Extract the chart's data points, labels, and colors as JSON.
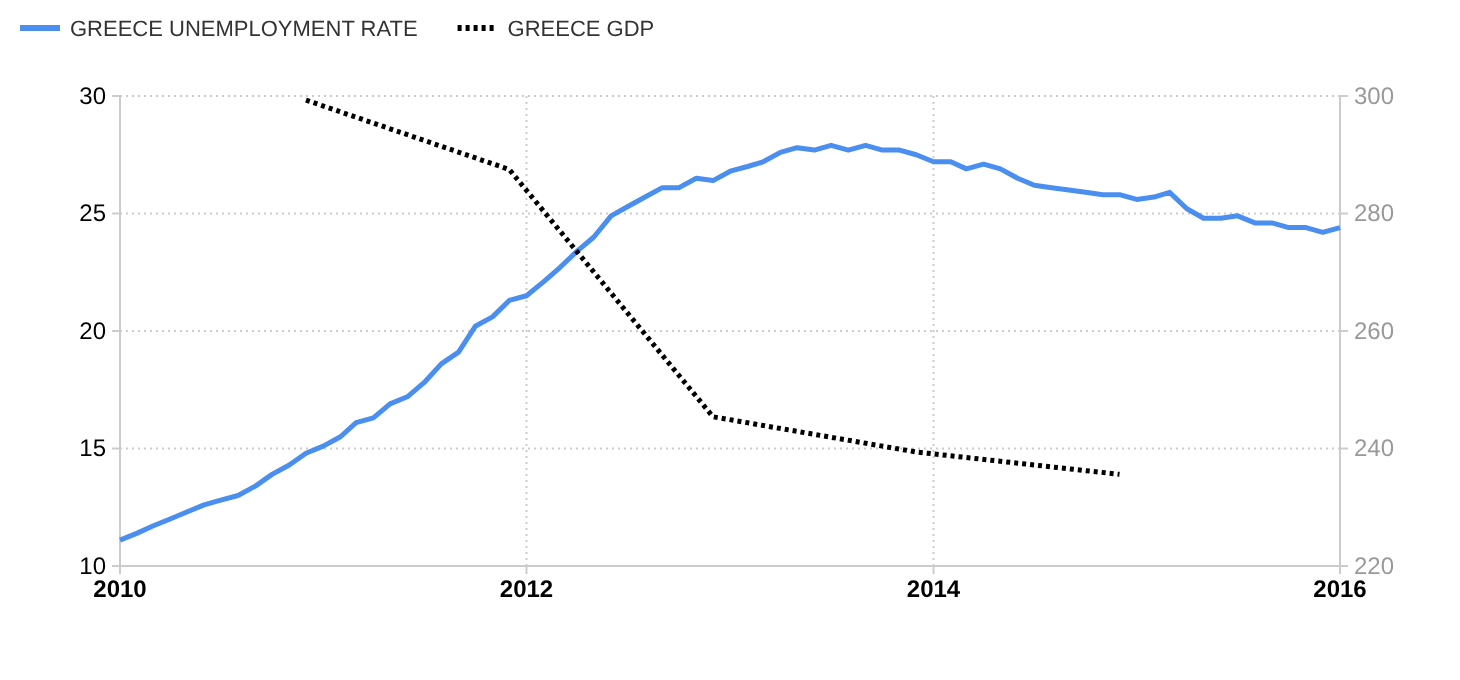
{
  "chart_data": {
    "type": "line",
    "legend": "top left",
    "grid": true,
    "xlim": [
      "2010-01",
      "2016-01"
    ],
    "xticks": [
      {
        "value": "2010-01",
        "label": "2010"
      },
      {
        "value": "2012-01",
        "label": "2012"
      },
      {
        "value": "2014-01",
        "label": "2014"
      },
      {
        "value": "2016-01",
        "label": "2016"
      }
    ],
    "ylim": [
      10,
      30
    ],
    "yticks": [
      10,
      15,
      20,
      25,
      30
    ],
    "y2lim": [
      220,
      300
    ],
    "y2ticks": [
      220,
      240,
      260,
      280,
      300
    ],
    "series": [
      {
        "name": "GREECE UNEMPLOYMENT RATE",
        "color": "#4a8ef0",
        "line_style": "solid",
        "x": [
          "2010-01",
          "2010-02",
          "2010-03",
          "2010-04",
          "2010-05",
          "2010-06",
          "2010-07",
          "2010-08",
          "2010-09",
          "2010-10",
          "2010-11",
          "2010-12",
          "2011-01",
          "2011-02",
          "2011-03",
          "2011-04",
          "2011-05",
          "2011-06",
          "2011-07",
          "2011-08",
          "2011-09",
          "2011-10",
          "2011-11",
          "2011-12",
          "2012-01",
          "2012-02",
          "2012-03",
          "2012-04",
          "2012-05",
          "2012-06",
          "2012-07",
          "2012-08",
          "2012-09",
          "2012-10",
          "2012-11",
          "2012-12",
          "2013-01",
          "2013-02",
          "2013-03",
          "2013-04",
          "2013-05",
          "2013-06",
          "2013-07",
          "2013-08",
          "2013-09",
          "2013-10",
          "2013-11",
          "2013-12",
          "2014-01",
          "2014-02",
          "2014-03",
          "2014-04",
          "2014-05",
          "2014-06",
          "2014-07",
          "2014-08",
          "2014-09",
          "2014-10",
          "2014-11",
          "2014-12",
          "2015-01",
          "2015-02",
          "2015-03",
          "2015-04",
          "2015-05",
          "2015-06",
          "2015-07",
          "2015-08",
          "2015-09",
          "2015-10",
          "2015-11",
          "2015-12",
          "2016-01"
        ],
        "values": [
          11.1,
          11.4,
          11.7,
          12.0,
          12.3,
          12.6,
          12.8,
          13.0,
          13.4,
          13.9,
          14.3,
          14.8,
          15.1,
          15.5,
          16.1,
          16.3,
          16.9,
          17.2,
          17.8,
          18.6,
          19.1,
          20.2,
          20.6,
          21.3,
          21.5,
          22.1,
          22.7,
          23.4,
          24.0,
          24.9,
          25.3,
          25.7,
          26.1,
          26.1,
          26.5,
          26.4,
          26.8,
          27.0,
          27.2,
          27.6,
          27.8,
          27.7,
          27.9,
          27.7,
          27.9,
          27.7,
          27.7,
          27.5,
          27.2,
          27.2,
          26.9,
          27.1,
          26.9,
          26.5,
          26.2,
          26.1,
          26.0,
          25.9,
          25.8,
          25.8,
          25.6,
          25.7,
          25.9,
          25.2,
          24.8,
          24.8,
          24.9,
          24.6,
          24.6,
          24.4,
          24.4,
          24.2,
          24.4
        ]
      },
      {
        "name": "GREECE GDP",
        "color": "#000000",
        "line_style": "dotted",
        "axis": "y2",
        "x": [
          "2010-12",
          "2011-12",
          "2012-12",
          "2013-12",
          "2014-12"
        ],
        "values": [
          299.3,
          287.5,
          245.4,
          239.4,
          235.6
        ]
      }
    ]
  }
}
